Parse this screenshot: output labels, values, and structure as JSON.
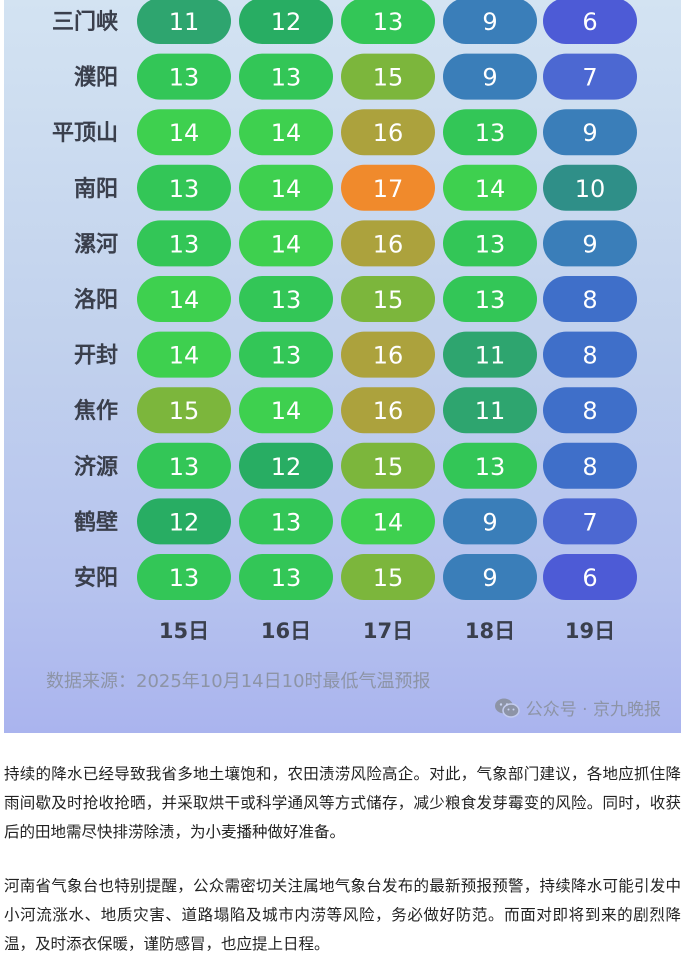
{
  "chart_data": {
    "type": "table",
    "columns": [
      "15日",
      "16日",
      "17日",
      "18日",
      "19日"
    ],
    "rows": [
      {
        "city": "三门峡",
        "values": [
          11,
          12,
          13,
          9,
          6
        ]
      },
      {
        "city": "濮阳",
        "values": [
          13,
          13,
          15,
          9,
          7
        ]
      },
      {
        "city": "平顶山",
        "values": [
          14,
          14,
          16,
          13,
          9
        ]
      },
      {
        "city": "南阳",
        "values": [
          13,
          14,
          17,
          14,
          10
        ]
      },
      {
        "city": "漯河",
        "values": [
          13,
          14,
          16,
          13,
          9
        ]
      },
      {
        "city": "洛阳",
        "values": [
          14,
          13,
          15,
          13,
          8
        ]
      },
      {
        "city": "开封",
        "values": [
          14,
          13,
          16,
          11,
          8
        ]
      },
      {
        "city": "焦作",
        "values": [
          15,
          14,
          16,
          11,
          8
        ]
      },
      {
        "city": "济源",
        "values": [
          13,
          12,
          15,
          13,
          8
        ]
      },
      {
        "city": "鹤壁",
        "values": [
          12,
          13,
          14,
          9,
          7
        ]
      },
      {
        "city": "安阳",
        "values": [
          13,
          13,
          15,
          9,
          6
        ]
      }
    ],
    "color_scale": {
      "6": "#4d5bd6",
      "7": "#4c68d2",
      "8": "#3f6fc9",
      "9": "#3a7eb9",
      "10": "#2f8f88",
      "11": "#2ea56f",
      "12": "#28ad63",
      "13": "#33c657",
      "14": "#3ed04f",
      "15": "#7cb63c",
      "16": "#aca23d",
      "17": "#f08a2c"
    }
  },
  "source_note": "数据来源：2025年10月14日10时最低气温预报",
  "watermark": {
    "icon": "wechat-icon",
    "text": "公众号 · 京九晚报"
  },
  "paragraphs": [
    "持续的降水已经导致我省多地土壤饱和，农田渍涝风险高企。对此，气象部门建议，各地应抓住降雨间歇及时抢收抢晒，并采取烘干或科学通风等方式储存，减少粮食发芽霉变的风险。同时，收获后的田地需尽快排涝除渍，为小麦播种做好准备。",
    "河南省气象台也特别提醒，公众需密切关注属地气象台发布的最新预报预警，持续降水可能引发中小河流涨水、地质灾害、道路塌陷及城市内涝等风险，务必做好防范。而面对即将到来的剧烈降温，及时添衣保暖，谨防感冒，也应提上日程。"
  ]
}
